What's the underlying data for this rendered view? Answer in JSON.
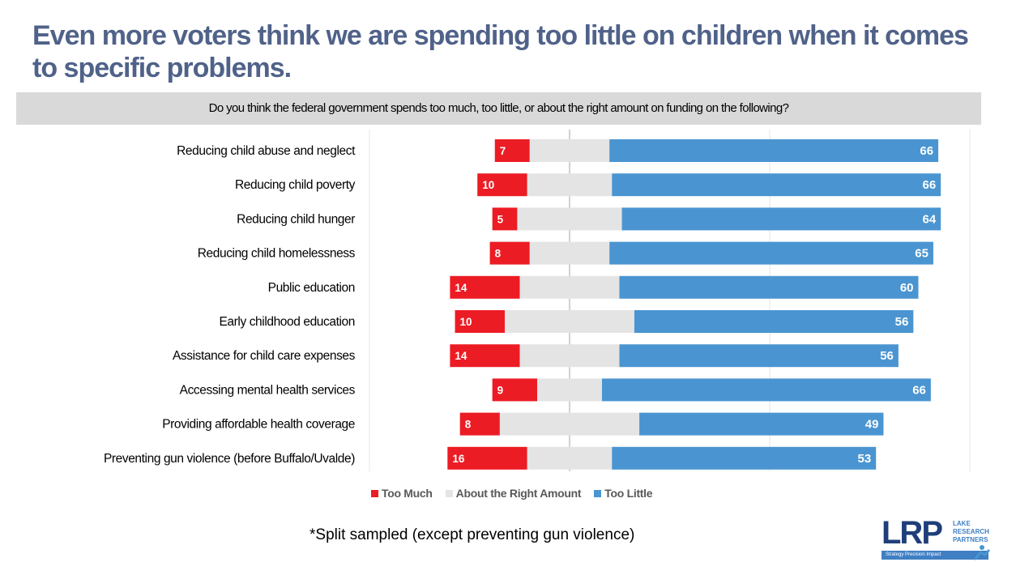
{
  "title": "Even more voters think we are spending too little on children when it comes to specific problems.",
  "question": "Do you think the federal government spends too much, too little, or about the right amount on funding on the following?",
  "footnote": "*Split sampled (except preventing gun violence)",
  "logo": {
    "letters": "LRP",
    "line1": "LAKE",
    "line2": "RESEARCH",
    "line3": "PARTNERS",
    "tagline": "Strategy   Precision   Impact"
  },
  "colors": {
    "too_much": "#ec1c24",
    "about_right": "#e4e4e4",
    "too_little": "#4a95d1",
    "title": "#506289"
  },
  "chart_data": {
    "type": "bar",
    "orientation": "horizontal",
    "stacked": true,
    "diverging": true,
    "categories": [
      "Reducing child abuse and neglect",
      "Reducing child poverty",
      "Reducing child hunger",
      "Reducing child homelessness",
      "Public education",
      "Early childhood education",
      "Assistance for child care expenses",
      "Accessing mental health services",
      "Providing affordable health coverage",
      "Preventing gun violence (before Buffalo/Uvalde)"
    ],
    "series": [
      {
        "name": "Too Much",
        "values": [
          7,
          10,
          5,
          8,
          14,
          10,
          14,
          9,
          8,
          16
        ],
        "labeled": true
      },
      {
        "name": "About the Right Amount",
        "values": [
          16,
          17,
          21,
          16,
          20,
          26,
          20,
          13,
          28,
          17
        ],
        "labeled": false
      },
      {
        "name": "Too Little",
        "values": [
          66,
          66,
          64,
          65,
          60,
          56,
          56,
          66,
          49,
          53
        ],
        "labeled": true
      }
    ],
    "grid": true,
    "legend_position": "bottom"
  }
}
